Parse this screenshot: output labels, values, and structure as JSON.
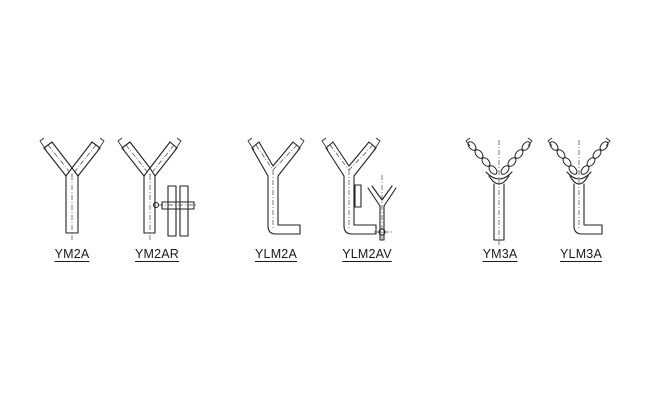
{
  "labels": {
    "ym2a": "YM2A",
    "ym2ar": "YM2AR",
    "ylm2a": "YLM2A",
    "ylm2av": "YLM2AV",
    "ym3a": "YM3A",
    "ylm3a": "YLM3A"
  }
}
